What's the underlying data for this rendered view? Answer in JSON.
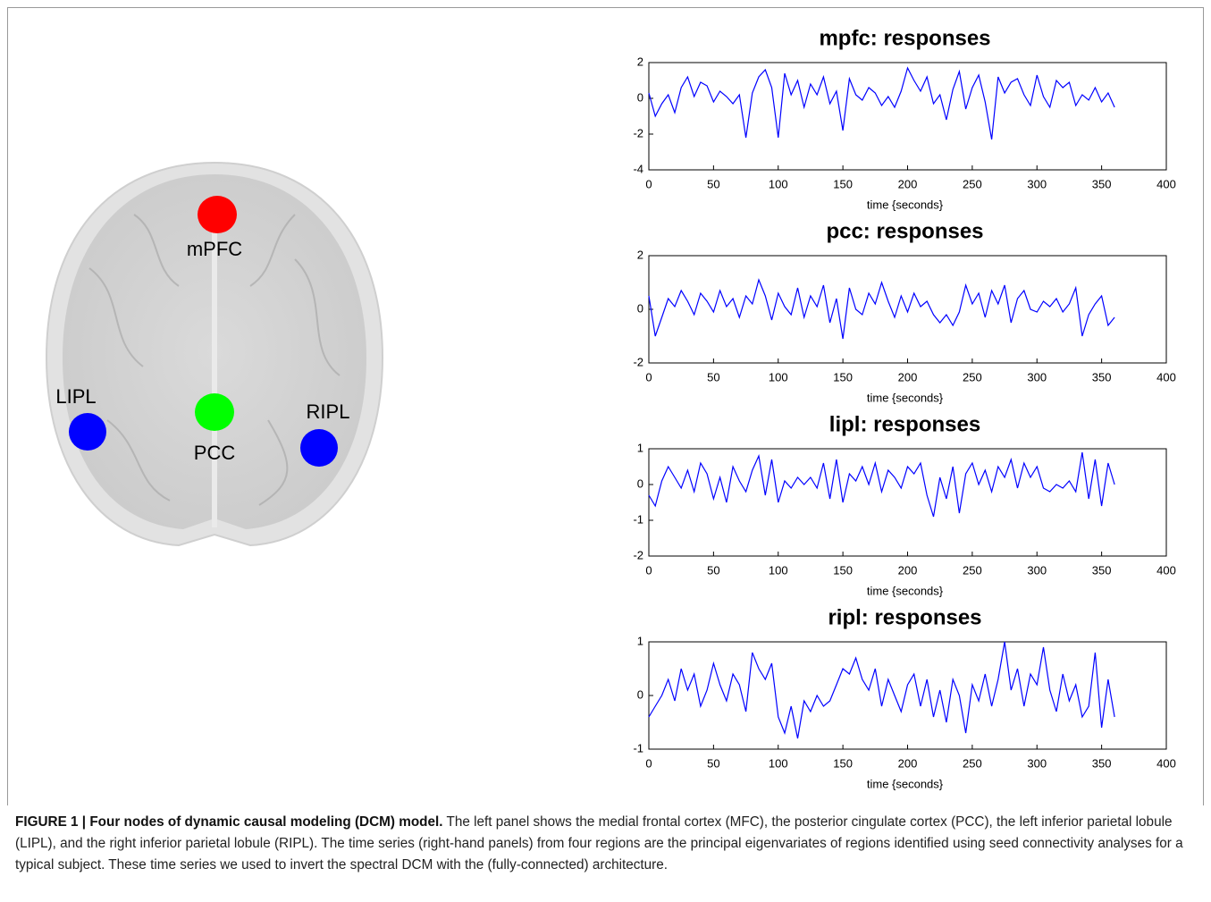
{
  "figure": {
    "nodes": [
      {
        "label": "mPFC"
      },
      {
        "label": "PCC"
      },
      {
        "label": "LIPL"
      },
      {
        "label": "RIPL"
      }
    ]
  },
  "chart_data": [
    {
      "type": "line",
      "title": "mpfc: responses",
      "x_label": "time {seconds}",
      "color": "#0000ff",
      "x": [
        0,
        5,
        10,
        15,
        20,
        25,
        30,
        35,
        40,
        45,
        50,
        55,
        60,
        65,
        70,
        75,
        80,
        85,
        90,
        95,
        100,
        105,
        110,
        115,
        120,
        125,
        130,
        135,
        140,
        145,
        150,
        155,
        160,
        165,
        170,
        175,
        180,
        185,
        190,
        195,
        200,
        205,
        210,
        215,
        220,
        225,
        230,
        235,
        240,
        245,
        250,
        255,
        260,
        265,
        270,
        275,
        280,
        285,
        290,
        295,
        300,
        305,
        310,
        315,
        320,
        325,
        330,
        335,
        340,
        345,
        350,
        355,
        360
      ],
      "values": [
        0.3,
        -1.0,
        -0.3,
        0.2,
        -0.8,
        0.6,
        1.2,
        0.1,
        0.9,
        0.7,
        -0.2,
        0.4,
        0.1,
        -0.3,
        0.2,
        -2.2,
        0.3,
        1.2,
        1.6,
        0.6,
        -2.2,
        1.4,
        0.2,
        1.0,
        -0.5,
        0.8,
        0.2,
        1.2,
        -0.3,
        0.4,
        -1.8,
        1.1,
        0.2,
        -0.1,
        0.6,
        0.3,
        -0.4,
        0.1,
        -0.5,
        0.4,
        1.7,
        1.0,
        0.4,
        1.2,
        -0.3,
        0.2,
        -1.2,
        0.5,
        1.5,
        -0.6,
        0.6,
        1.3,
        -0.2,
        -2.3,
        1.2,
        0.3,
        0.9,
        1.1,
        0.2,
        -0.4,
        1.3,
        0.1,
        -0.5,
        1.0,
        0.6,
        0.9,
        -0.4,
        0.2,
        -0.1,
        0.6,
        -0.2,
        0.3,
        -0.5
      ],
      "xlim": [
        0,
        400
      ],
      "xticks": [
        0,
        50,
        100,
        150,
        200,
        250,
        300,
        350,
        400
      ],
      "ylim": [
        -4,
        2
      ],
      "yticks": [
        -4,
        -2,
        0,
        2
      ]
    },
    {
      "type": "line",
      "title": "pcc: responses",
      "x_label": "time {seconds}",
      "color": "#0000ff",
      "x": [
        0,
        5,
        10,
        15,
        20,
        25,
        30,
        35,
        40,
        45,
        50,
        55,
        60,
        65,
        70,
        75,
        80,
        85,
        90,
        95,
        100,
        105,
        110,
        115,
        120,
        125,
        130,
        135,
        140,
        145,
        150,
        155,
        160,
        165,
        170,
        175,
        180,
        185,
        190,
        195,
        200,
        205,
        210,
        215,
        220,
        225,
        230,
        235,
        240,
        245,
        250,
        255,
        260,
        265,
        270,
        275,
        280,
        285,
        290,
        295,
        300,
        305,
        310,
        315,
        320,
        325,
        330,
        335,
        340,
        345,
        350,
        355,
        360
      ],
      "values": [
        0.5,
        -1.0,
        -0.3,
        0.4,
        0.1,
        0.7,
        0.3,
        -0.2,
        0.6,
        0.3,
        -0.1,
        0.7,
        0.1,
        0.4,
        -0.3,
        0.5,
        0.2,
        1.1,
        0.5,
        -0.4,
        0.6,
        0.1,
        -0.2,
        0.8,
        -0.3,
        0.5,
        0.1,
        0.9,
        -0.5,
        0.4,
        -1.1,
        0.8,
        0.0,
        -0.2,
        0.6,
        0.2,
        1.0,
        0.3,
        -0.3,
        0.5,
        -0.1,
        0.6,
        0.1,
        0.3,
        -0.2,
        -0.5,
        -0.2,
        -0.6,
        -0.1,
        0.9,
        0.2,
        0.6,
        -0.3,
        0.7,
        0.2,
        0.9,
        -0.5,
        0.4,
        0.7,
        0.0,
        -0.1,
        0.3,
        0.1,
        0.4,
        -0.1,
        0.2,
        0.8,
        -1.0,
        -0.2,
        0.2,
        0.5,
        -0.6,
        -0.3
      ],
      "xlim": [
        0,
        400
      ],
      "xticks": [
        0,
        50,
        100,
        150,
        200,
        250,
        300,
        350,
        400
      ],
      "ylim": [
        -2,
        2
      ],
      "yticks": [
        -2,
        0,
        2
      ]
    },
    {
      "type": "line",
      "title": "lipl: responses",
      "x_label": "time {seconds}",
      "color": "#0000ff",
      "x": [
        0,
        5,
        10,
        15,
        20,
        25,
        30,
        35,
        40,
        45,
        50,
        55,
        60,
        65,
        70,
        75,
        80,
        85,
        90,
        95,
        100,
        105,
        110,
        115,
        120,
        125,
        130,
        135,
        140,
        145,
        150,
        155,
        160,
        165,
        170,
        175,
        180,
        185,
        190,
        195,
        200,
        205,
        210,
        215,
        220,
        225,
        230,
        235,
        240,
        245,
        250,
        255,
        260,
        265,
        270,
        275,
        280,
        285,
        290,
        295,
        300,
        305,
        310,
        315,
        320,
        325,
        330,
        335,
        340,
        345,
        350,
        355,
        360
      ],
      "values": [
        -0.3,
        -0.6,
        0.1,
        0.5,
        0.2,
        -0.1,
        0.4,
        -0.2,
        0.6,
        0.3,
        -0.4,
        0.2,
        -0.5,
        0.5,
        0.1,
        -0.2,
        0.4,
        0.8,
        -0.3,
        0.7,
        -0.5,
        0.1,
        -0.1,
        0.2,
        0.0,
        0.2,
        -0.1,
        0.6,
        -0.4,
        0.7,
        -0.5,
        0.3,
        0.1,
        0.5,
        0.0,
        0.6,
        -0.2,
        0.4,
        0.2,
        -0.1,
        0.5,
        0.3,
        0.6,
        -0.3,
        -0.9,
        0.2,
        -0.4,
        0.5,
        -0.8,
        0.3,
        0.6,
        0.0,
        0.4,
        -0.2,
        0.5,
        0.2,
        0.7,
        -0.1,
        0.6,
        0.2,
        0.5,
        -0.1,
        -0.2,
        0.0,
        -0.1,
        0.1,
        -0.2,
        0.9,
        -0.4,
        0.7,
        -0.6,
        0.6,
        0.0
      ],
      "xlim": [
        0,
        400
      ],
      "xticks": [
        0,
        50,
        100,
        150,
        200,
        250,
        300,
        350,
        400
      ],
      "ylim": [
        -2,
        1
      ],
      "yticks": [
        -2,
        -1,
        0,
        1
      ]
    },
    {
      "type": "line",
      "title": "ripl: responses",
      "x_label": "time {seconds}",
      "color": "#0000ff",
      "x": [
        0,
        5,
        10,
        15,
        20,
        25,
        30,
        35,
        40,
        45,
        50,
        55,
        60,
        65,
        70,
        75,
        80,
        85,
        90,
        95,
        100,
        105,
        110,
        115,
        120,
        125,
        130,
        135,
        140,
        145,
        150,
        155,
        160,
        165,
        170,
        175,
        180,
        185,
        190,
        195,
        200,
        205,
        210,
        215,
        220,
        225,
        230,
        235,
        240,
        245,
        250,
        255,
        260,
        265,
        270,
        275,
        280,
        285,
        290,
        295,
        300,
        305,
        310,
        315,
        320,
        325,
        330,
        335,
        340,
        345,
        350,
        355,
        360
      ],
      "values": [
        -0.4,
        -0.2,
        0.0,
        0.3,
        -0.1,
        0.5,
        0.1,
        0.4,
        -0.2,
        0.1,
        0.6,
        0.2,
        -0.1,
        0.4,
        0.2,
        -0.3,
        0.8,
        0.5,
        0.3,
        0.6,
        -0.4,
        -0.7,
        -0.2,
        -0.8,
        -0.1,
        -0.3,
        0.0,
        -0.2,
        -0.1,
        0.2,
        0.5,
        0.4,
        0.7,
        0.3,
        0.1,
        0.5,
        -0.2,
        0.3,
        0.0,
        -0.3,
        0.2,
        0.4,
        -0.2,
        0.3,
        -0.4,
        0.1,
        -0.5,
        0.3,
        0.0,
        -0.7,
        0.2,
        -0.1,
        0.4,
        -0.2,
        0.3,
        1.0,
        0.1,
        0.5,
        -0.2,
        0.4,
        0.2,
        0.9,
        0.1,
        -0.3,
        0.4,
        -0.1,
        0.2,
        -0.4,
        -0.2,
        0.8,
        -0.6,
        0.3,
        -0.4
      ],
      "xlim": [
        0,
        400
      ],
      "xticks": [
        0,
        50,
        100,
        150,
        200,
        250,
        300,
        350,
        400
      ],
      "ylim": [
        -1,
        1
      ],
      "yticks": [
        -1,
        0,
        1
      ]
    }
  ],
  "caption": {
    "label": "FIGURE 1 | Four nodes of dynamic causal modeling (DCM) model.",
    "text": "The left panel shows the medial frontal cortex (MFC), the posterior cingulate cortex (PCC), the left inferior parietal lobule (LIPL), and the right inferior parietal lobule (RIPL). The time series (right-hand panels) from four regions are the principal eigenvariates of regions identified using seed connectivity analyses for a typical subject. These time series we used to invert the spectral DCM with the (fully-connected) architecture."
  }
}
